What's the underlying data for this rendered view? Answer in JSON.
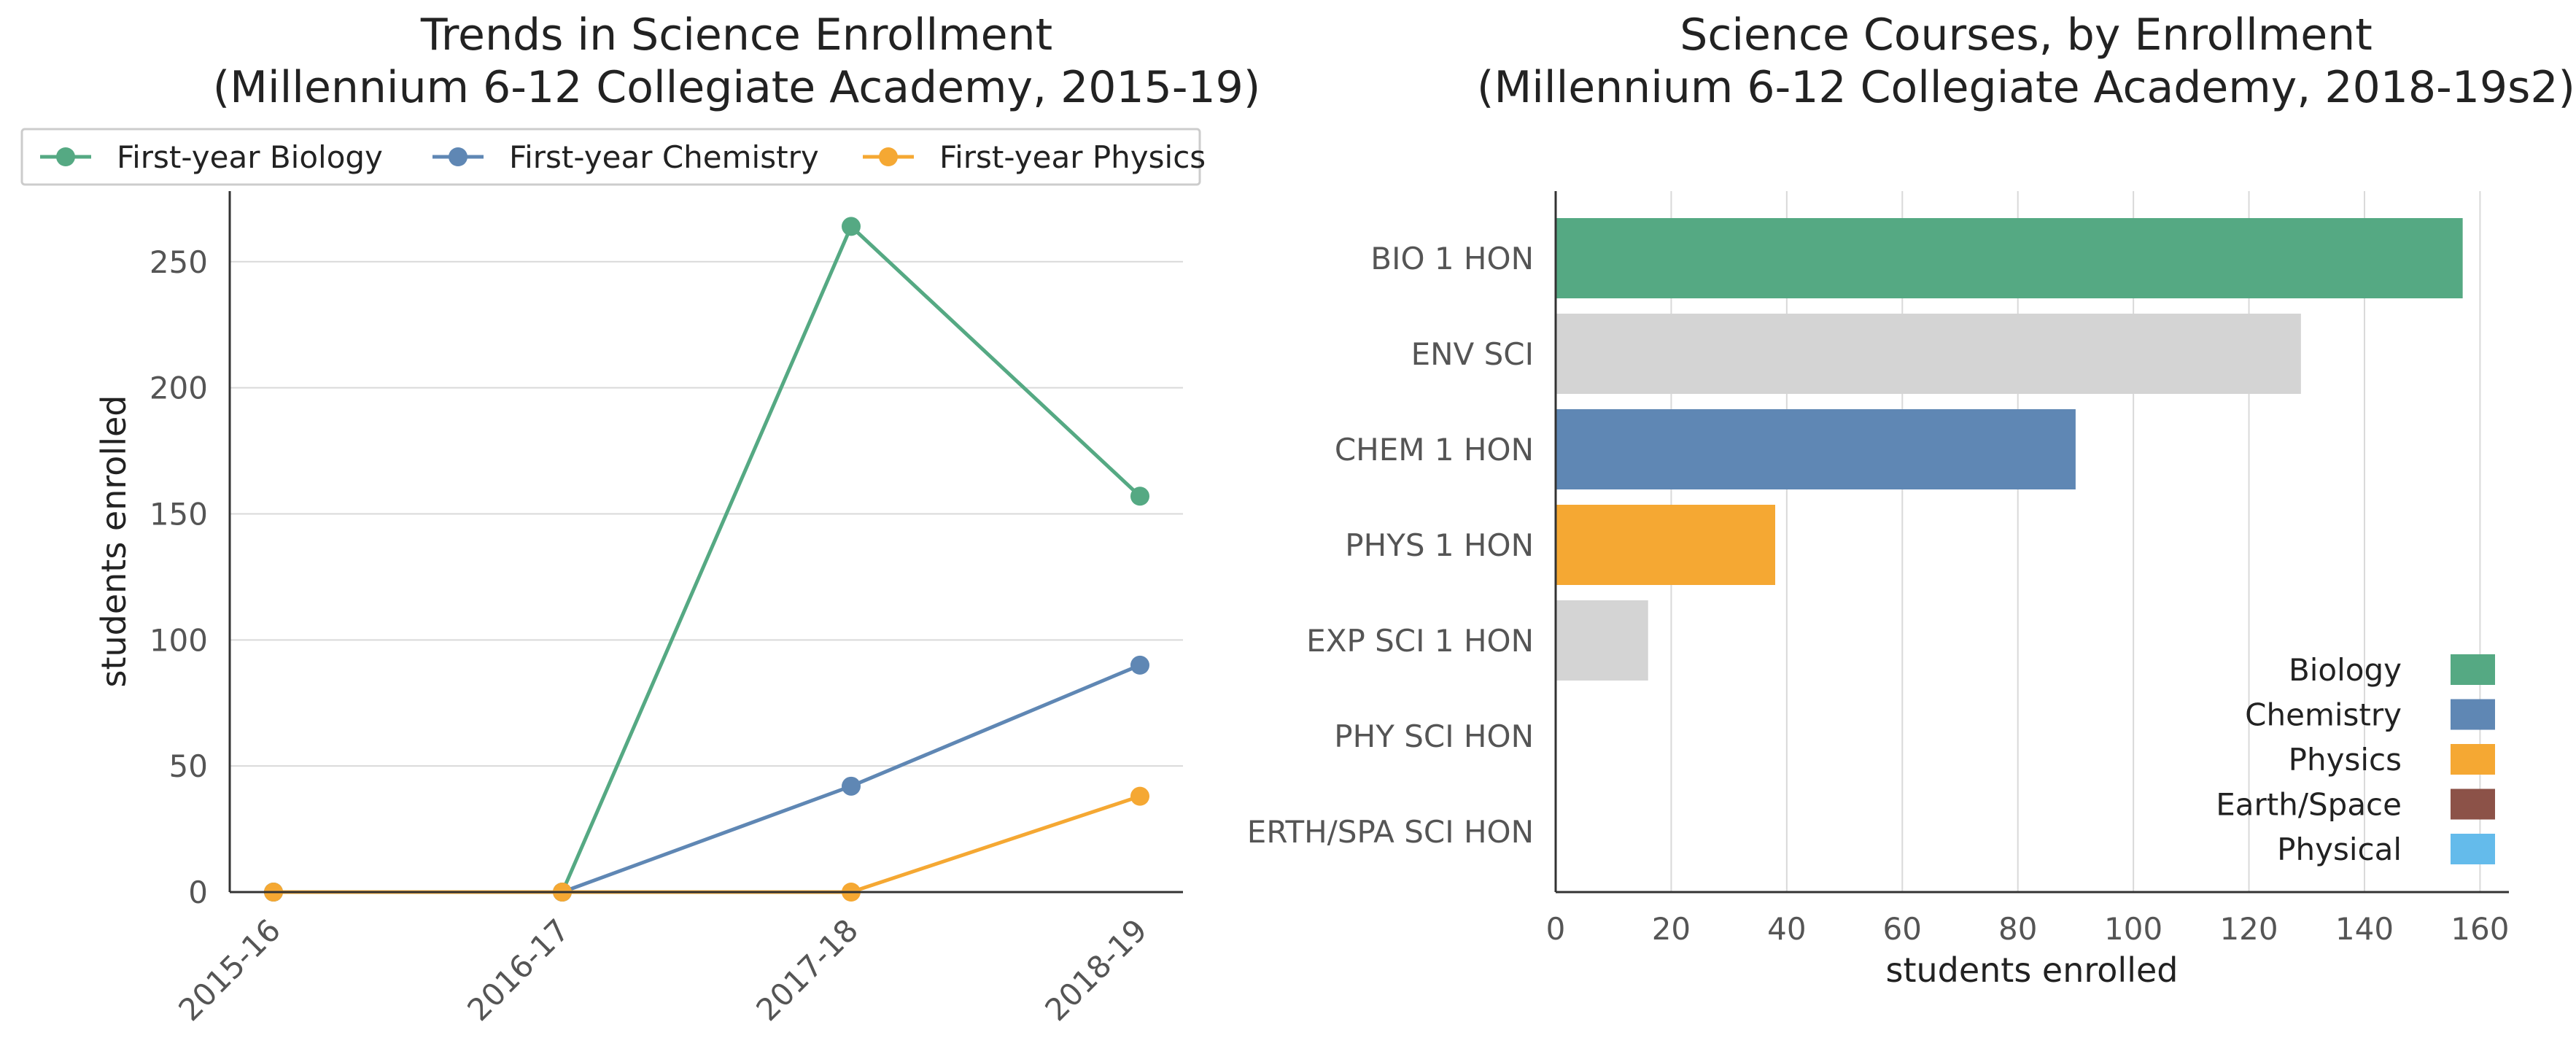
{
  "chart_data": [
    {
      "type": "line",
      "title": "Trends in Science Enrollment",
      "subtitle": "(Millennium 6-12 Collegiate Academy, 2015-19)",
      "xlabel": "",
      "ylabel": "students enrolled",
      "categories": [
        "2015-16",
        "2016-17",
        "2017-18",
        "2018-19"
      ],
      "ylim": [
        0,
        278
      ],
      "yticks": [
        0,
        50,
        100,
        150,
        200,
        250
      ],
      "grid": "horizontal",
      "legend_position": "top",
      "series": [
        {
          "name": "First-year Biology",
          "color": "#55a983",
          "values": [
            0,
            0,
            264,
            157
          ]
        },
        {
          "name": "First-year Chemistry",
          "color": "#5f87b4",
          "values": [
            0,
            0,
            42,
            90
          ]
        },
        {
          "name": "First-year Physics",
          "color": "#f5a833",
          "values": [
            0,
            0,
            0,
            38
          ]
        }
      ]
    },
    {
      "type": "bar",
      "orientation": "horizontal",
      "title": "Science Courses, by Enrollment",
      "subtitle": "(Millennium 6-12 Collegiate Academy, 2018-19s2)",
      "xlabel": "students enrolled",
      "ylabel": "",
      "xlim": [
        0,
        165
      ],
      "xticks": [
        0,
        20,
        40,
        60,
        80,
        100,
        120,
        140,
        160
      ],
      "grid": "vertical",
      "legend_position": "bottom-right",
      "categories": [
        "BIO 1 HON",
        "ENV SCI",
        "CHEM 1 HON",
        "PHYS 1 HON",
        "EXP SCI 1 HON",
        "PHY SCI HON",
        "ERTH/SPA SCI HON"
      ],
      "values": [
        157,
        129,
        90,
        38,
        16,
        0,
        0
      ],
      "bar_colors": [
        "#55a983",
        "#d4d4d4",
        "#5f87b4",
        "#f5a833",
        "#d4d4d4",
        "#d4d4d4",
        "#d4d4d4"
      ],
      "legend": [
        {
          "name": "Biology",
          "color": "#55a983"
        },
        {
          "name": "Chemistry",
          "color": "#5f87b4"
        },
        {
          "name": "Physics",
          "color": "#f5a833"
        },
        {
          "name": "Earth/Space",
          "color": "#8c5248"
        },
        {
          "name": "Physical",
          "color": "#64bbeb"
        }
      ]
    }
  ]
}
